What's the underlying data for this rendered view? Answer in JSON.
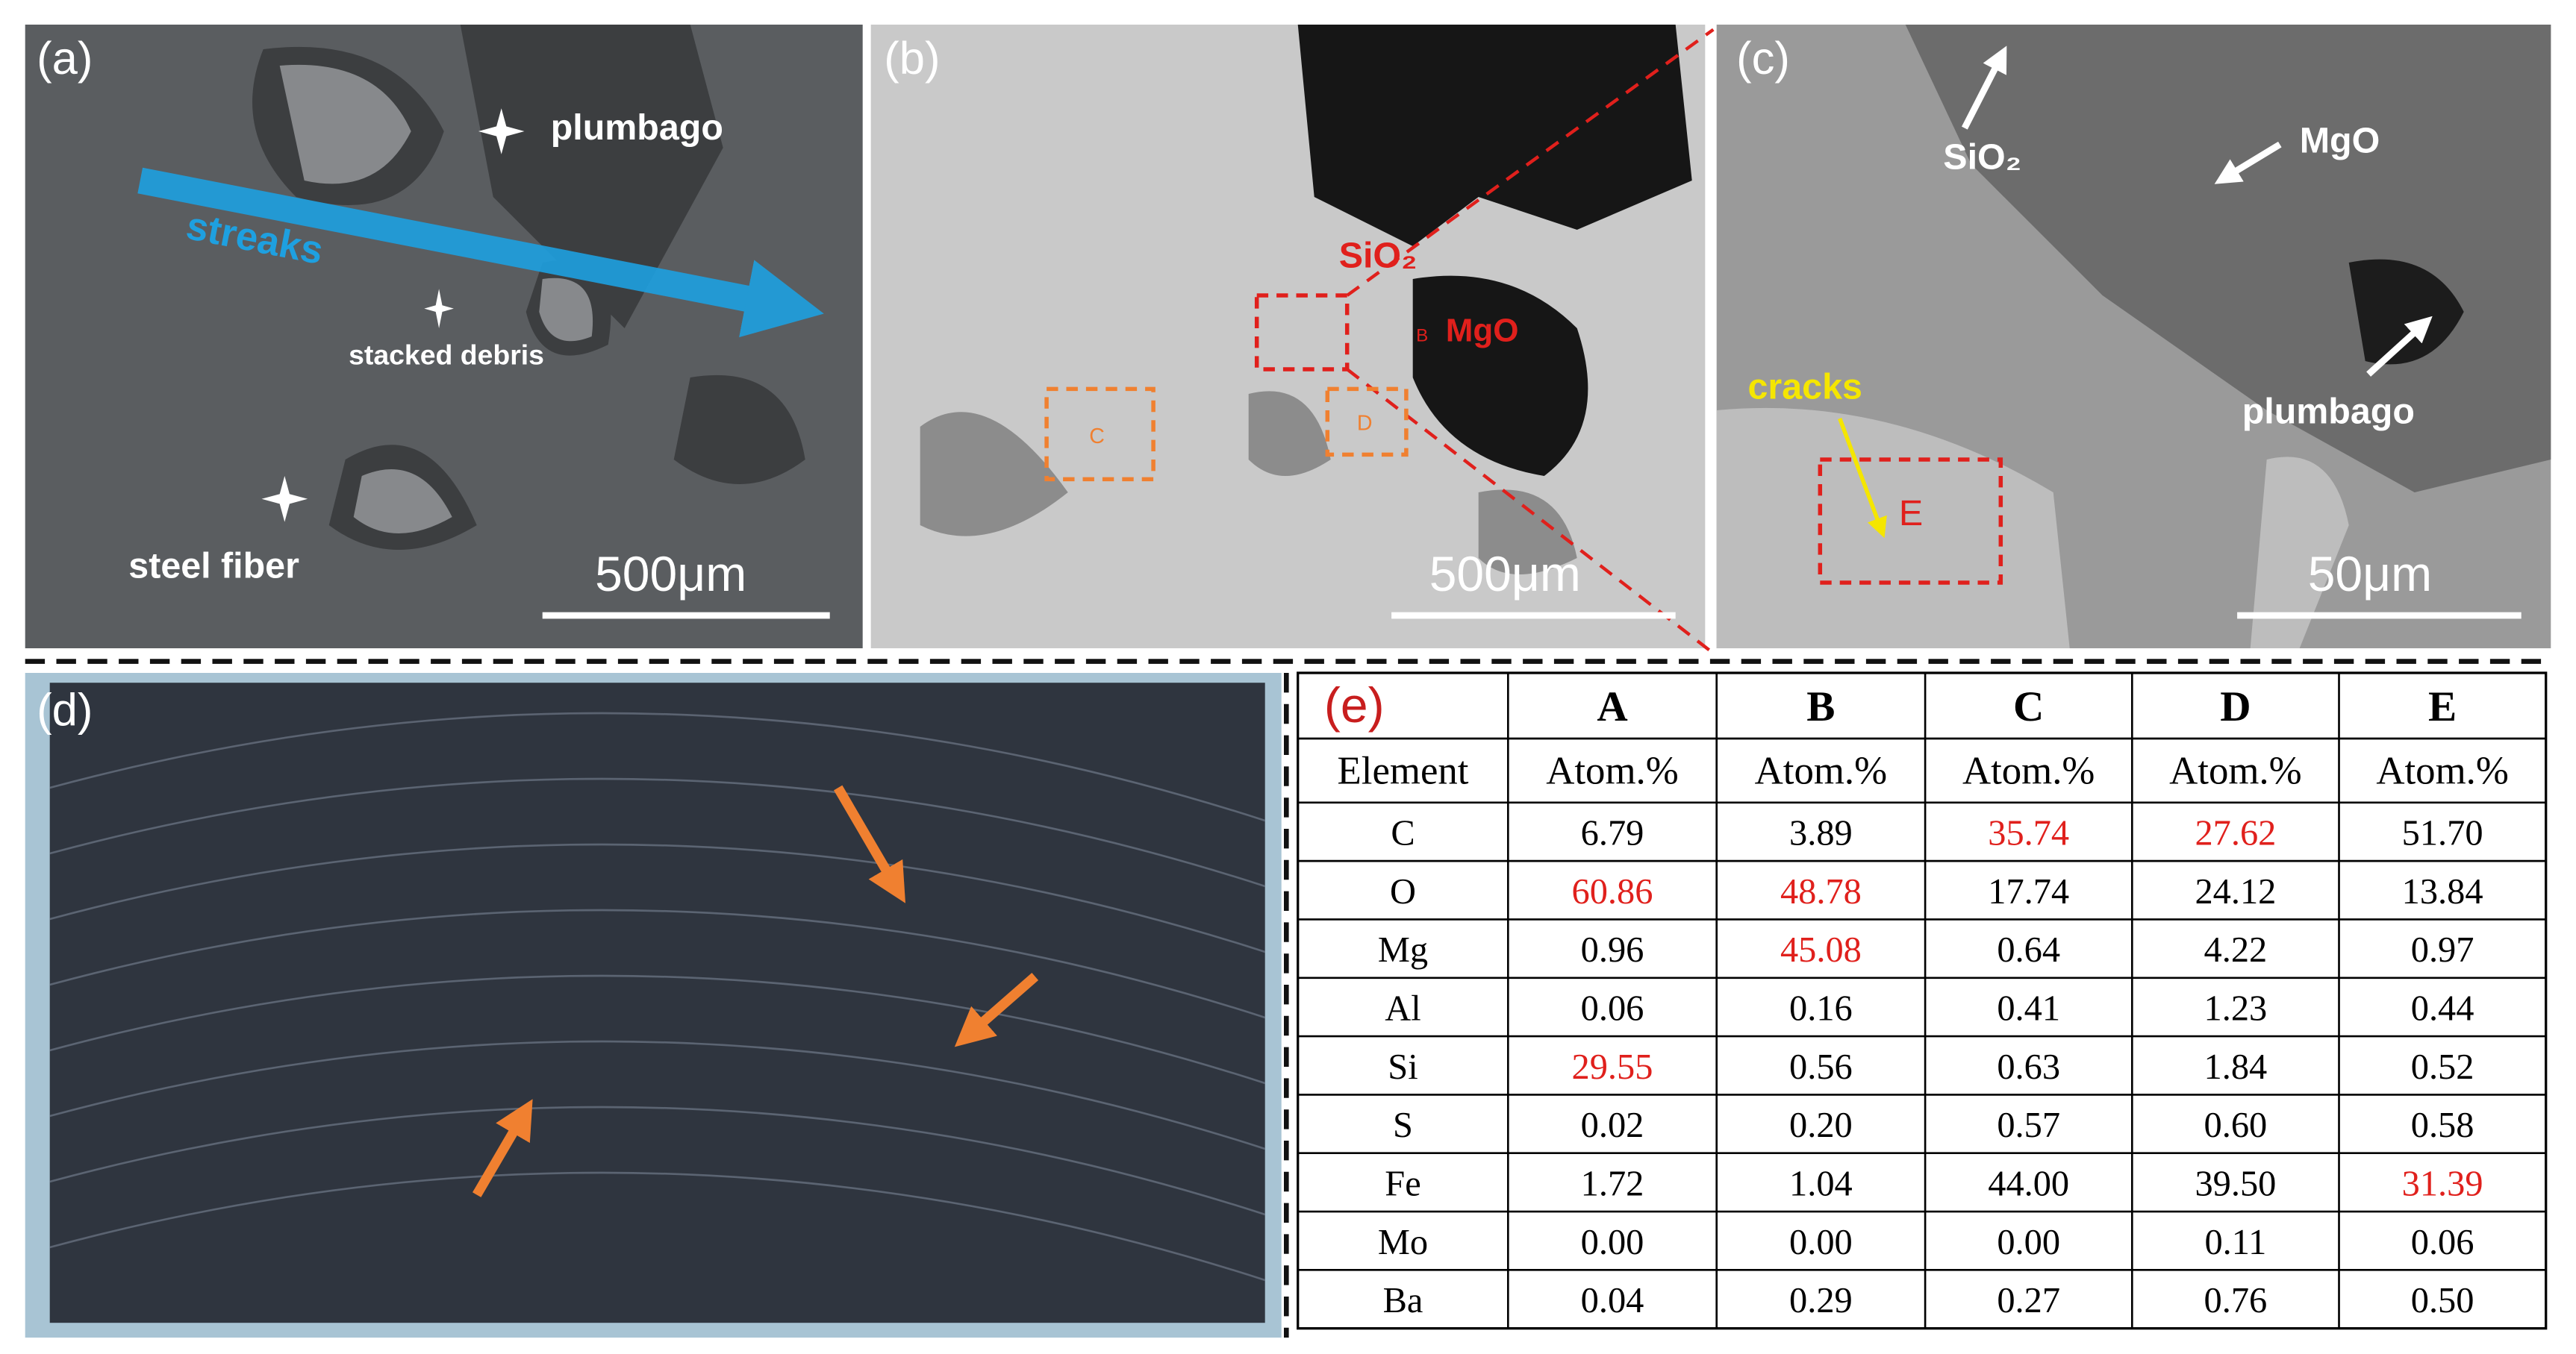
{
  "panels": [
    {
      "label": "(a)",
      "annotations": [
        "plumbago",
        "streaks",
        "stacked debris",
        "steel fiber"
      ],
      "scale_bar": "500μm"
    },
    {
      "label": "(b)",
      "annotations": [
        "SiO₂",
        "MgO",
        "B",
        "C",
        "D"
      ],
      "scale_bar": "500μm"
    },
    {
      "label": "(c)",
      "annotations": [
        "SiO₂",
        "MgO",
        "plumbago",
        "cracks",
        "E"
      ],
      "scale_bar": "50μm"
    },
    {
      "label": "(d)"
    }
  ],
  "table": {
    "label": "(e)",
    "columns": [
      "A",
      "B",
      "C",
      "D",
      "E"
    ],
    "subheader": [
      "Element",
      "Atom.%",
      "Atom.%",
      "Atom.%",
      "Atom.%",
      "Atom.%"
    ],
    "rows": [
      [
        "C",
        "6.79",
        "3.89",
        "35.74",
        "27.62",
        "51.70"
      ],
      [
        "O",
        "60.86",
        "48.78",
        "17.74",
        "24.12",
        "13.84"
      ],
      [
        "Mg",
        "0.96",
        "45.08",
        "0.64",
        "4.22",
        "0.97"
      ],
      [
        "Al",
        "0.06",
        "0.16",
        "0.41",
        "1.23",
        "0.44"
      ],
      [
        "Si",
        "29.55",
        "0.56",
        "0.63",
        "1.84",
        "0.52"
      ],
      [
        "S",
        "0.02",
        "0.20",
        "0.57",
        "0.60",
        "0.58"
      ],
      [
        "Fe",
        "1.72",
        "1.04",
        "44.00",
        "39.50",
        "31.39"
      ],
      [
        "Mo",
        "0.00",
        "0.00",
        "0.00",
        "0.11",
        "0.06"
      ],
      [
        "Ba",
        "0.04",
        "0.29",
        "0.27",
        "0.76",
        "0.50"
      ]
    ],
    "highlight_color": "#e0201c",
    "highlighted_cells": [
      [
        1,
        1
      ],
      [
        4,
        1
      ],
      [
        1,
        2
      ],
      [
        2,
        2
      ],
      [
        0,
        3
      ],
      [
        0,
        4
      ],
      [
        6,
        5
      ]
    ]
  }
}
